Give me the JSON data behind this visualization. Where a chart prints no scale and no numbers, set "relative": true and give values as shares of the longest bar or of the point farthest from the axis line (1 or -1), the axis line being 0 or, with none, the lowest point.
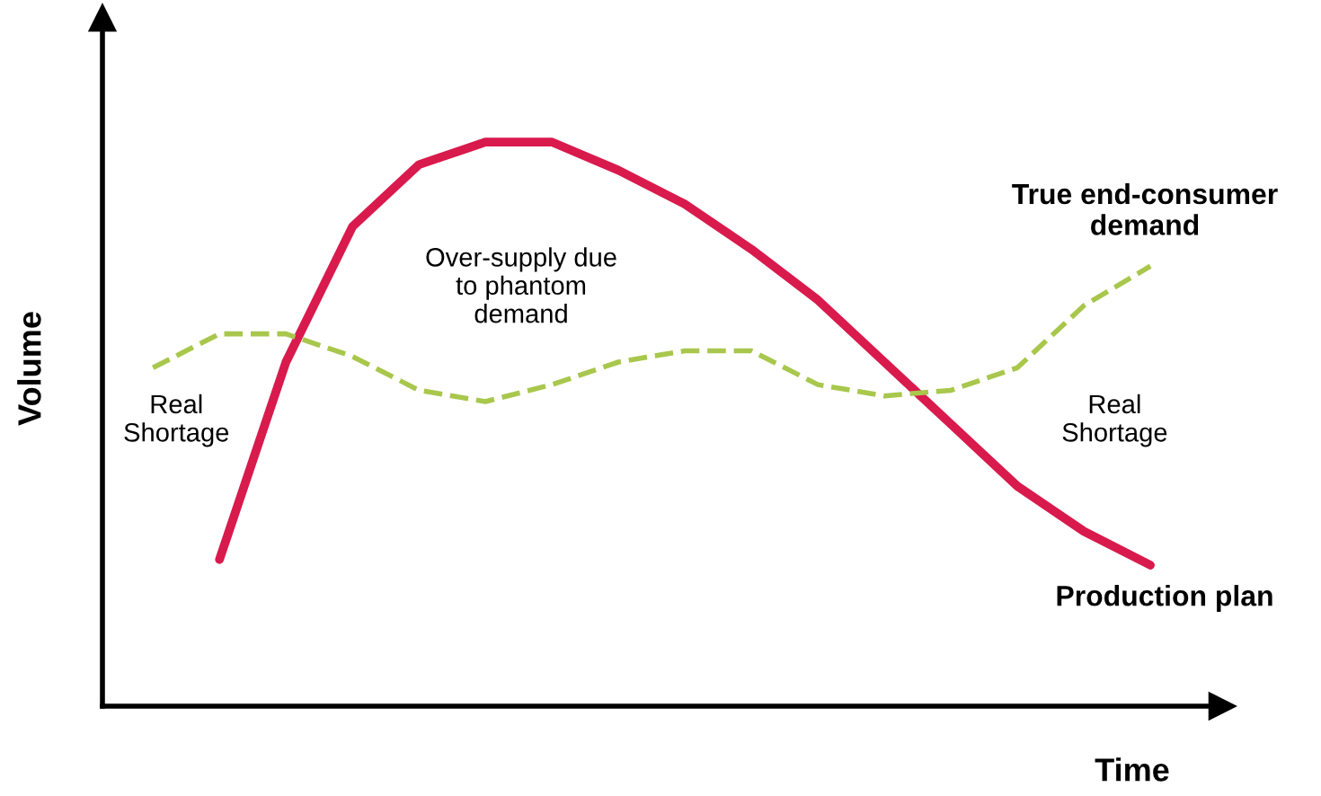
{
  "chart_data": {
    "type": "line",
    "relative": true,
    "xlabel": "Time",
    "ylabel": "Volume",
    "categories": [
      null,
      null,
      null,
      null,
      null,
      null,
      null,
      null,
      null,
      null,
      null,
      null,
      null,
      null,
      null,
      null
    ],
    "series": [
      {
        "name": "Production plan",
        "color": "#d91a4d",
        "line_style": "solid",
        "values": [
          null,
          0.26,
          0.61,
          0.85,
          0.96,
          1,
          1,
          0.95,
          0.89,
          0.81,
          0.72,
          0.61,
          0.5,
          0.39,
          0.31,
          0.25
        ]
      },
      {
        "name": "True end-consumer demand",
        "color": "#a8c74c",
        "line_style": "dashed",
        "values": [
          0.6,
          0.66,
          0.66,
          0.62,
          0.56,
          0.54,
          0.57,
          0.61,
          0.63,
          0.63,
          0.57,
          0.55,
          0.56,
          0.6,
          0.71,
          0.78
        ]
      }
    ],
    "annotations": [
      "Real\nShortage",
      "Over-supply due\nto phantom\ndemand",
      "Real\nShortage"
    ],
    "grid": false,
    "legend": false,
    "marker": "none"
  }
}
